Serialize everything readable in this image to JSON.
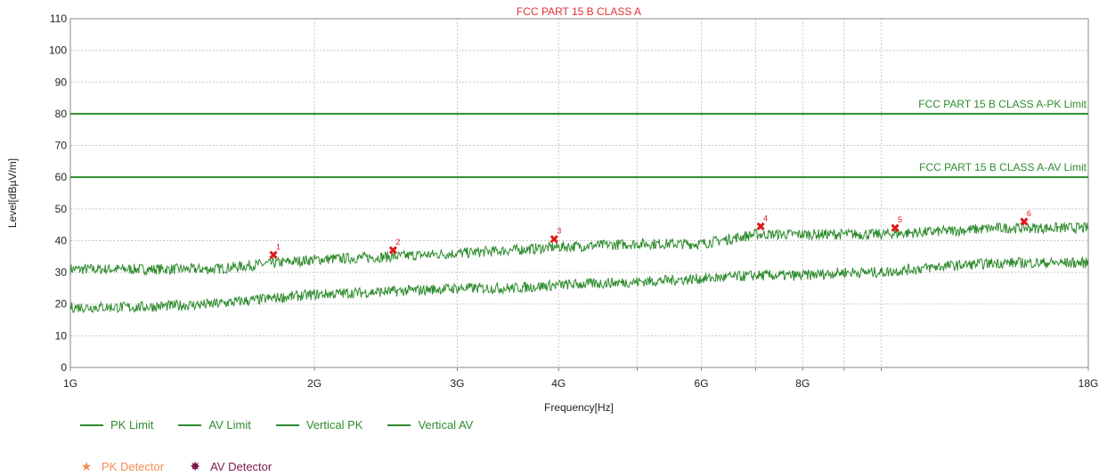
{
  "chart_data": {
    "type": "line",
    "title": "FCC PART 15 B CLASS A",
    "xlabel": "Frequency[Hz]",
    "ylabel": "Level[dBµV/m]",
    "x_scale": "log",
    "xlim": [
      1000000000,
      18000000000
    ],
    "ylim": [
      0,
      110
    ],
    "grid": true,
    "x_ticks": [
      {
        "value": 1000000000,
        "label": "1G"
      },
      {
        "value": 2000000000,
        "label": "2G"
      },
      {
        "value": 3000000000,
        "label": "3G"
      },
      {
        "value": 4000000000,
        "label": "4G"
      },
      {
        "value": 6000000000,
        "label": "6G"
      },
      {
        "value": 8000000000,
        "label": "8G"
      },
      {
        "value": 18000000000,
        "label": "18G"
      }
    ],
    "x_minor_grid": [
      5000000000,
      7000000000,
      9000000000,
      10000000000
    ],
    "y_ticks": [
      0,
      10,
      20,
      30,
      40,
      50,
      60,
      70,
      80,
      90,
      100,
      110
    ],
    "limits": [
      {
        "name": "PK Limit",
        "value": 80,
        "label": "FCC PART 15 B CLASS A-PK Limit",
        "color": "#2e8b2e"
      },
      {
        "name": "AV Limit",
        "value": 60,
        "label": "FCC PART 15 B CLASS A-AV Limit",
        "color": "#2e8b2e"
      }
    ],
    "series": [
      {
        "name": "Vertical PK",
        "color": "#2e8b2e",
        "x": [
          1000000000,
          1500000000,
          1800000000,
          2000000000,
          2500000000,
          3000000000,
          3500000000,
          4000000000,
          5000000000,
          6000000000,
          7000000000,
          8000000000,
          9000000000,
          10000000000,
          12000000000,
          14000000000,
          16000000000,
          18000000000
        ],
        "values": [
          31,
          31,
          33,
          34,
          35,
          36,
          37,
          38,
          39,
          39,
          42,
          42,
          42,
          42,
          43,
          44,
          44,
          44
        ]
      },
      {
        "name": "Vertical AV",
        "color": "#2e8b2e",
        "x": [
          1000000000,
          1200000000,
          1500000000,
          1800000000,
          2000000000,
          2500000000,
          3000000000,
          3500000000,
          4000000000,
          5000000000,
          6000000000,
          7000000000,
          8000000000,
          9000000000,
          10000000000,
          12000000000,
          14000000000,
          16000000000,
          18000000000
        ],
        "values": [
          19,
          19,
          20,
          22,
          23,
          24,
          25,
          25,
          26,
          27,
          28,
          29,
          29,
          30,
          30,
          32,
          33,
          33,
          33
        ]
      }
    ],
    "markers": [
      {
        "id": "1",
        "x": 1780000000,
        "value": 35.5
      },
      {
        "id": "2",
        "x": 2500000000,
        "value": 37.0
      },
      {
        "id": "3",
        "x": 3950000000,
        "value": 40.5
      },
      {
        "id": "4",
        "x": 7100000000,
        "value": 44.5
      },
      {
        "id": "5",
        "x": 10400000000,
        "value": 44.0
      },
      {
        "id": "6",
        "x": 15000000000,
        "value": 46.0
      }
    ],
    "legend": {
      "placement": "bottom-left",
      "lines": [
        {
          "label": "PK Limit",
          "color": "#2e8b2e"
        },
        {
          "label": "AV Limit",
          "color": "#2e8b2e"
        },
        {
          "label": "Vertical PK",
          "color": "#2e8b2e"
        },
        {
          "label": "Vertical AV",
          "color": "#2e8b2e"
        }
      ],
      "markers": [
        {
          "label": "PK Detector",
          "glyph": "★",
          "color": "#f08c50"
        },
        {
          "label": "AV Detector",
          "glyph": "✸",
          "color": "#7b1a4b"
        }
      ]
    }
  }
}
